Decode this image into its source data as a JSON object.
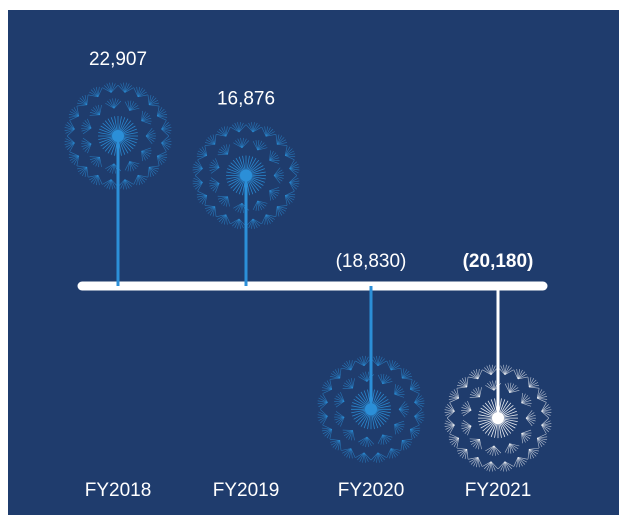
{
  "chart_data": {
    "type": "dandelion",
    "categories": [
      "FY2018",
      "FY2019",
      "FY2020",
      "FY2021"
    ],
    "values": [
      22907,
      16876,
      -18830,
      -20180
    ],
    "value_labels": [
      "22,907",
      "16,876",
      "(18,830)",
      "(20,180)"
    ],
    "colors": [
      "#2b8fd8",
      "#2b8fd8",
      "#2b8fd8",
      "#ffffff"
    ],
    "highlight_index": 3
  }
}
